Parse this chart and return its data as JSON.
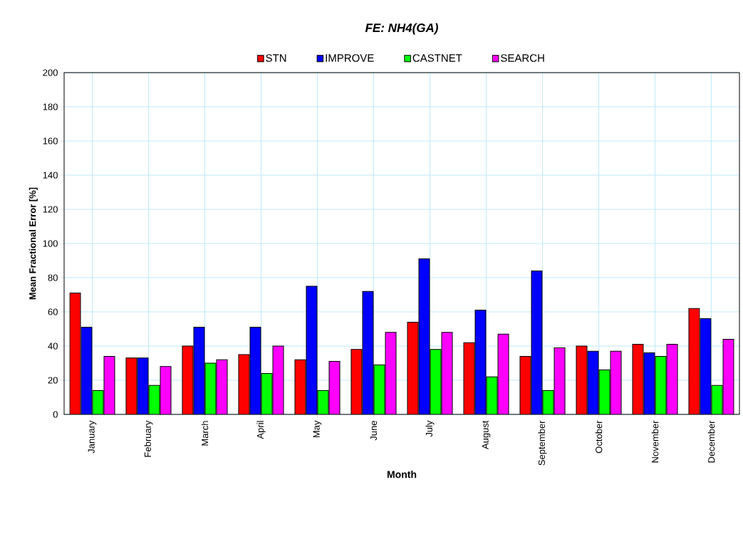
{
  "chart_data": {
    "type": "bar",
    "title": "FE: NH4(GA)",
    "xlabel": "Month",
    "ylabel": "Mean Fractional Error [%]",
    "categories": [
      "January",
      "February",
      "March",
      "April",
      "May",
      "June",
      "July",
      "August",
      "September",
      "October",
      "November",
      "December"
    ],
    "series": [
      {
        "name": "STN",
        "color": "#ff0000",
        "values": [
          71,
          33,
          40,
          35,
          32,
          38,
          54,
          42,
          34,
          40,
          41,
          62
        ]
      },
      {
        "name": "IMPROVE",
        "color": "#0000ff",
        "values": [
          51,
          33,
          51,
          51,
          75,
          72,
          91,
          61,
          84,
          37,
          36,
          56
        ]
      },
      {
        "name": "CASTNET",
        "color": "#00ff00",
        "values": [
          14,
          17,
          30,
          24,
          14,
          29,
          38,
          22,
          14,
          26,
          34,
          17
        ]
      },
      {
        "name": "SEARCH",
        "color": "#ff00ff",
        "values": [
          34,
          28,
          32,
          40,
          31,
          48,
          48,
          47,
          39,
          37,
          41,
          44
        ]
      }
    ],
    "ylim": [
      0,
      200
    ],
    "yticks": [
      0,
      20,
      40,
      60,
      80,
      100,
      120,
      140,
      160,
      180,
      200
    ],
    "grid": true,
    "legend": "top"
  }
}
